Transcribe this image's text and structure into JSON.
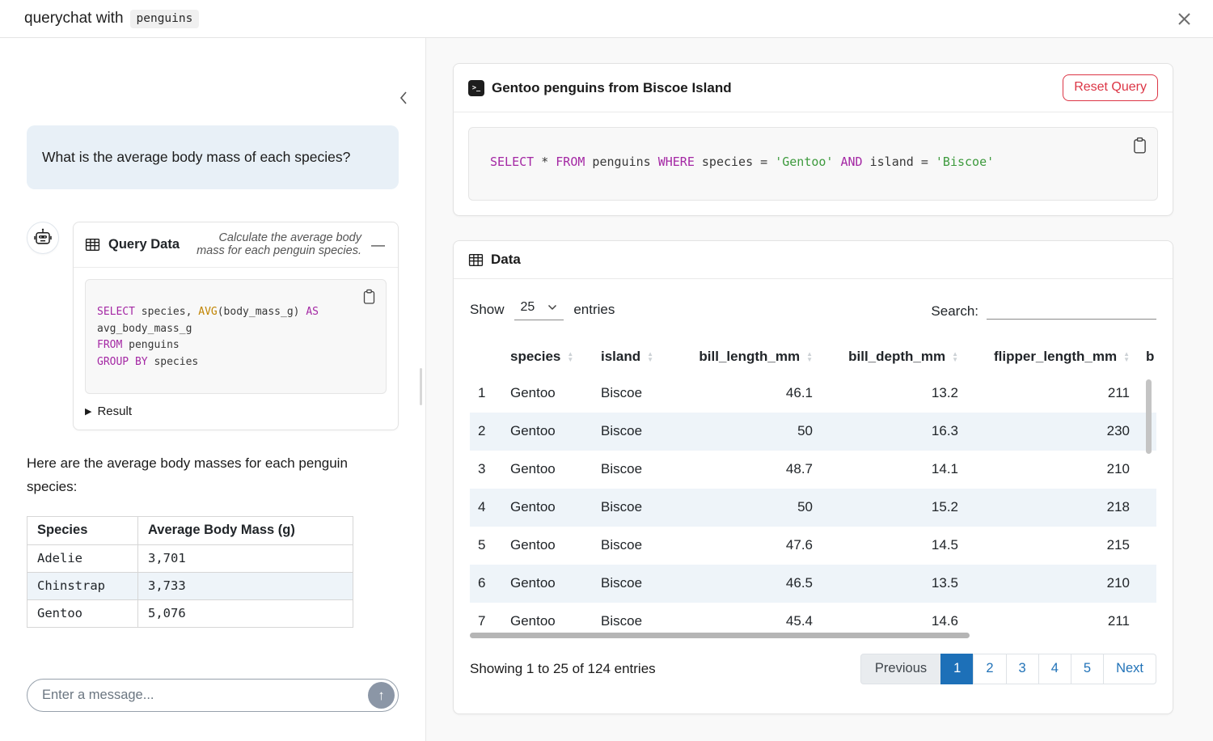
{
  "header": {
    "title_prefix": "querychat with",
    "dataset_badge": "penguins"
  },
  "sidebar": {
    "user_message": "What is the average body mass of each species?",
    "tool_card": {
      "title": "Query Data",
      "description": "Calculate the average body mass for each penguin species.",
      "sql_lines": [
        [
          [
            "SELECT",
            "kw"
          ],
          [
            " species, ",
            "pl"
          ],
          [
            "AVG",
            "fn"
          ],
          [
            "(body_mass_g) ",
            "pl"
          ],
          [
            "AS",
            "kw"
          ]
        ],
        [
          [
            "avg_body_mass_g",
            "pl"
          ]
        ],
        [
          [
            "FROM",
            "kw"
          ],
          [
            " penguins",
            "pl"
          ]
        ],
        [
          [
            "GROUP BY",
            "kw"
          ],
          [
            " species",
            "pl"
          ]
        ]
      ],
      "result_label": "Result"
    },
    "assistant_text": "Here are the average body masses for each penguin species:",
    "result_table": {
      "headers": [
        "Species",
        "Average Body Mass (g)"
      ],
      "rows": [
        [
          "Adelie",
          "3,701"
        ],
        [
          "Chinstrap",
          "3,733"
        ],
        [
          "Gentoo",
          "5,076"
        ]
      ]
    },
    "input": {
      "placeholder": "Enter a message..."
    }
  },
  "main": {
    "query_card": {
      "title": "Gentoo penguins from Biscoe Island",
      "reset_button": "Reset Query",
      "sql_lines": [
        [
          [
            "SELECT",
            "kw"
          ],
          [
            " * ",
            "pl"
          ],
          [
            "FROM",
            "kw"
          ],
          [
            " penguins ",
            "pl"
          ],
          [
            "WHERE",
            "kw"
          ],
          [
            " species = ",
            "pl"
          ],
          [
            "'Gentoo'",
            "str"
          ],
          [
            " ",
            "pl"
          ],
          [
            "AND",
            "kw"
          ],
          [
            " island = ",
            "pl"
          ],
          [
            "'Biscoe'",
            "str"
          ]
        ]
      ]
    },
    "data_card": {
      "title": "Data",
      "show_label": "Show",
      "page_size": "25",
      "entries_label": "entries",
      "search_label": "Search:",
      "table": {
        "columns": [
          {
            "label": "",
            "align": "left",
            "sort": false
          },
          {
            "label": "species",
            "align": "left",
            "sort": true
          },
          {
            "label": "island",
            "align": "left",
            "sort": true
          },
          {
            "label": "bill_length_mm",
            "align": "right",
            "sort": true
          },
          {
            "label": "bill_depth_mm",
            "align": "right",
            "sort": true
          },
          {
            "label": "flipper_length_mm",
            "align": "right",
            "sort": true
          },
          {
            "label": "b",
            "align": "left",
            "sort": false
          }
        ],
        "rows": [
          [
            "1",
            "Gentoo",
            "Biscoe",
            "46.1",
            "13.2",
            "211",
            ""
          ],
          [
            "2",
            "Gentoo",
            "Biscoe",
            "50",
            "16.3",
            "230",
            ""
          ],
          [
            "3",
            "Gentoo",
            "Biscoe",
            "48.7",
            "14.1",
            "210",
            ""
          ],
          [
            "4",
            "Gentoo",
            "Biscoe",
            "50",
            "15.2",
            "218",
            ""
          ],
          [
            "5",
            "Gentoo",
            "Biscoe",
            "47.6",
            "14.5",
            "215",
            ""
          ],
          [
            "6",
            "Gentoo",
            "Biscoe",
            "46.5",
            "13.5",
            "210",
            ""
          ],
          [
            "7",
            "Gentoo",
            "Biscoe",
            "45.4",
            "14.6",
            "211",
            ""
          ]
        ]
      },
      "info": "Showing 1 to 25 of 124 entries",
      "pagination": [
        {
          "label": "Previous",
          "state": "disabled"
        },
        {
          "label": "1",
          "state": "active"
        },
        {
          "label": "2",
          "state": "link"
        },
        {
          "label": "3",
          "state": "link"
        },
        {
          "label": "4",
          "state": "link"
        },
        {
          "label": "5",
          "state": "link"
        },
        {
          "label": "Next",
          "state": "link"
        }
      ]
    }
  }
}
